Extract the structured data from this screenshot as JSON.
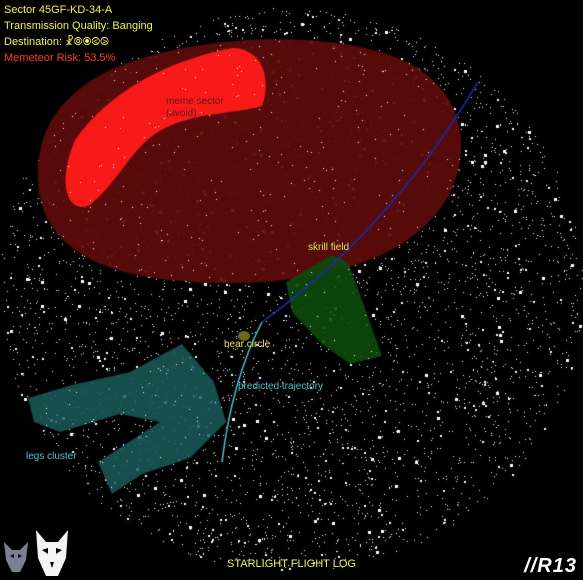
{
  "hud": {
    "sector": "Sector 45GF-KD-34-A",
    "transmission_quality": "Transmission Quality: Banging",
    "destination": "Destination: ☧⦾⦿⧀⧁",
    "memeteor_risk": "Memeteor Risk: 53.5%"
  },
  "map_labels": {
    "meme_sector": "meme sector",
    "meme_sector_note": "(avoid)",
    "skrill_field": "skrill field",
    "bear_circle": "bear circle",
    "predicted_trajectory": "predicted trajectory",
    "legs_cluster": "legs cluster"
  },
  "footer": {
    "title": "STARLIGHT FLIGHT LOG",
    "badge": "//R13"
  },
  "colors": {
    "hazard_zone": "#5c0b0b",
    "meme_sector": "#ff1a1a",
    "skrill_field": "#0c4a0c",
    "legs_cluster": "#1a5a5a",
    "bear_circle": "#6b6b1a",
    "trajectory_upper": "#1d2aa8",
    "trajectory_lower": "#4ec0d2",
    "stars": "#ffffff"
  },
  "icons": [
    "wolf-mascot-icon",
    "wolf-mascot-icon-white"
  ]
}
